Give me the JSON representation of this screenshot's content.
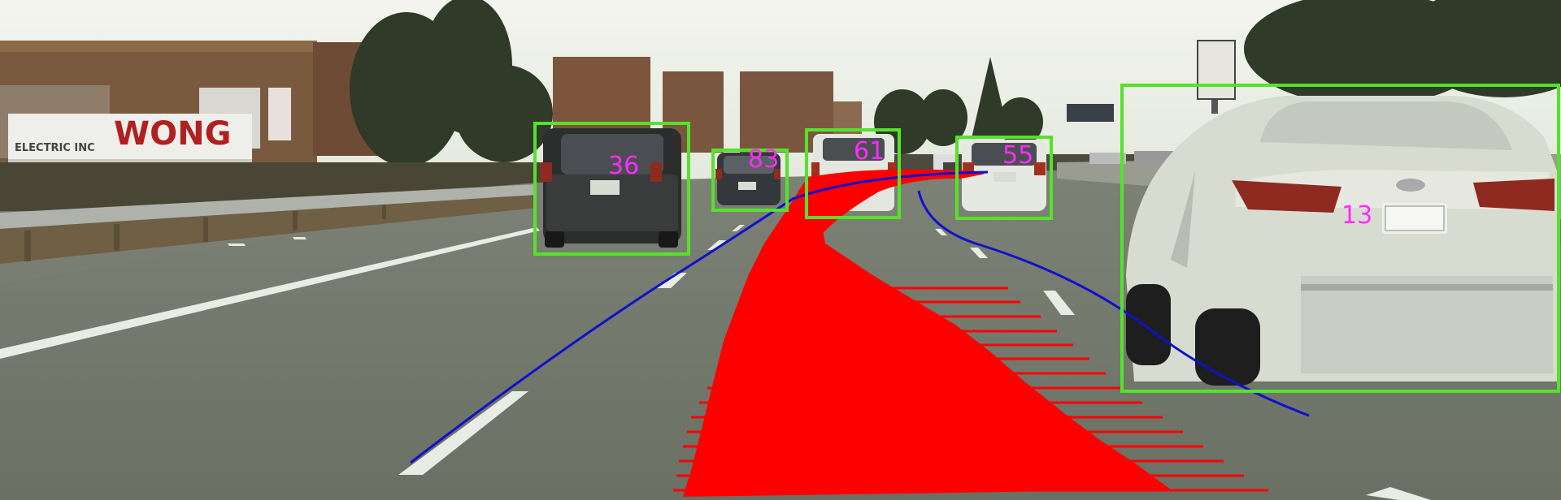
{
  "detections": [
    {
      "id": "36"
    },
    {
      "id": "83"
    },
    {
      "id": "61"
    },
    {
      "id": "55"
    },
    {
      "id": "13"
    }
  ],
  "background_sign_text": "WONG",
  "background_sign_subtext": "ELECTRIC INC",
  "colors": {
    "bbox": "#55e22a",
    "track_id": "#ff2bff",
    "lane_line": "#1010cc",
    "path": "#ff0000"
  }
}
